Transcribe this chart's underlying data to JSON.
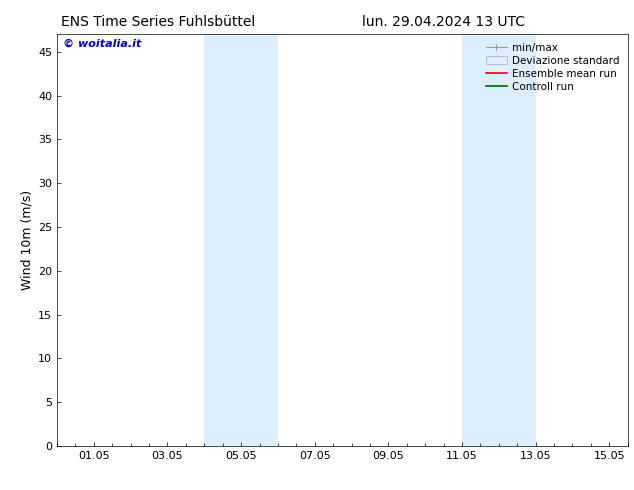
{
  "title_left": "ENS Time Series Fuhlsbüttel",
  "title_right": "lun. 29.04.2024 13 UTC",
  "ylabel": "Wind 10m (m/s)",
  "watermark": "© woitalia.it",
  "watermark_color": "#0000cc",
  "ylim": [
    0,
    47
  ],
  "yticks": [
    0,
    5,
    10,
    15,
    20,
    25,
    30,
    35,
    40,
    45
  ],
  "xtick_labels": [
    "01.05",
    "03.05",
    "05.05",
    "07.05",
    "09.05",
    "11.05",
    "13.05",
    "15.05"
  ],
  "xtick_positions": [
    1,
    3,
    5,
    7,
    9,
    11,
    13,
    15
  ],
  "xlim": [
    0.0,
    15.5
  ],
  "shaded_regions": [
    {
      "xmin": 4.0,
      "xmax": 6.0,
      "color": "#ddeeff"
    },
    {
      "xmin": 11.0,
      "xmax": 13.0,
      "color": "#ddeeff"
    }
  ],
  "legend_entries": [
    {
      "label": "min/max",
      "type": "minmax",
      "color": "#999999"
    },
    {
      "label": "Deviazione standard",
      "type": "patch",
      "facecolor": "#ddeeff",
      "edgecolor": "#aaaaaa"
    },
    {
      "label": "Ensemble mean run",
      "type": "line",
      "color": "#ff0000",
      "lw": 1.2
    },
    {
      "label": "Controll run",
      "type": "line",
      "color": "#006600",
      "lw": 1.2
    }
  ],
  "bg_color": "#ffffff",
  "plot_bg_color": "#ffffff",
  "title_fontsize": 10,
  "ylabel_fontsize": 9,
  "tick_fontsize": 8,
  "legend_fontsize": 7.5,
  "watermark_fontsize": 8
}
